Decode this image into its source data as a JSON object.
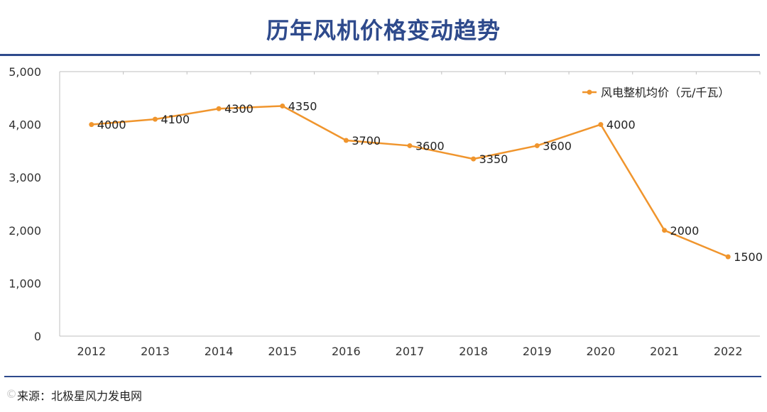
{
  "title": "历年风机价格变动趋势",
  "source": "来源：北极星风力发电网",
  "colors": {
    "title": "#2e4a8c",
    "series": "#f0952d",
    "axis": "#bfbfbf"
  },
  "chart_data": {
    "type": "line",
    "title": "历年风机价格变动趋势",
    "xlabel": "",
    "ylabel": "",
    "categories": [
      "2012",
      "2013",
      "2014",
      "2015",
      "2016",
      "2017",
      "2018",
      "2019",
      "2020",
      "2021",
      "2022"
    ],
    "series": [
      {
        "name": "风电整机均价（元/千瓦）",
        "values": [
          4000,
          4100,
          4300,
          4350,
          3700,
          3600,
          3350,
          3600,
          4000,
          2000,
          1500
        ]
      }
    ],
    "ylim": [
      0,
      5000
    ],
    "yticks": [
      0,
      1000,
      2000,
      3000,
      4000,
      5000
    ],
    "ytick_labels": [
      "0",
      "1,000",
      "2,000",
      "3,000",
      "4,000",
      "5,000"
    ],
    "data_labels": [
      "4000",
      "4100",
      "4300",
      "4350",
      "3700",
      "3600",
      "3350",
      "3600",
      "4000",
      "2000",
      "1500"
    ],
    "legend_position": "top-right",
    "grid": false
  }
}
